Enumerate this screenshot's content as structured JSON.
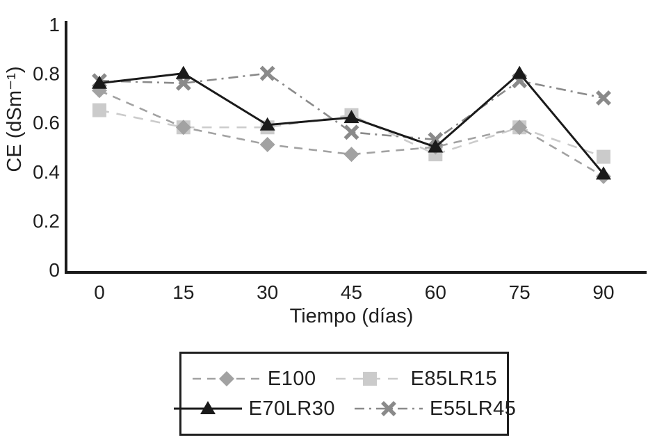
{
  "figure": {
    "background": "#ffffff",
    "axis_color": "#1a1a1a",
    "text_color": "#1f1f1f"
  },
  "chart_data": {
    "type": "line",
    "title": "",
    "xlabel": "Tiempo (días)",
    "ylabel": "CE (dSm⁻¹)",
    "x": [
      0,
      15,
      30,
      45,
      60,
      75,
      90
    ],
    "xtick_labels": [
      "0",
      "15",
      "30",
      "45",
      "60",
      "75",
      "90"
    ],
    "ylim": [
      0,
      1
    ],
    "yticks": [
      0,
      0.2,
      0.4,
      0.6,
      0.8,
      1
    ],
    "ytick_labels": [
      "0",
      "0.2",
      "0.4",
      "0.6",
      "0.8",
      "1"
    ],
    "grid": false,
    "legend_position": "bottom",
    "series": [
      {
        "name": "E100",
        "marker": "diamond",
        "color": "#a2a2a2",
        "line_style": "dashed",
        "dash": "12 9",
        "line_width": 2.6,
        "values": [
          0.73,
          0.58,
          0.51,
          0.47,
          0.5,
          0.58,
          0.38
        ]
      },
      {
        "name": "E85LR15",
        "marker": "square",
        "color": "#cbcbcb",
        "line_style": "dashed",
        "dash": "14 11",
        "line_width": 2.6,
        "values": [
          0.65,
          0.58,
          0.58,
          0.63,
          0.47,
          0.58,
          0.46
        ]
      },
      {
        "name": "E70LR30",
        "marker": "triangle",
        "color": "#1a1a1a",
        "line_style": "solid",
        "dash": "",
        "line_width": 3,
        "values": [
          0.76,
          0.8,
          0.59,
          0.62,
          0.5,
          0.8,
          0.39
        ]
      },
      {
        "name": "E55LR45",
        "marker": "x",
        "color": "#8a8a8a",
        "line_style": "dash-dot",
        "dash": "14 7 3 7",
        "line_width": 2.6,
        "values": [
          0.77,
          0.76,
          0.8,
          0.56,
          0.53,
          0.77,
          0.7
        ]
      }
    ],
    "draw_order": [
      1,
      0,
      3,
      2
    ]
  }
}
